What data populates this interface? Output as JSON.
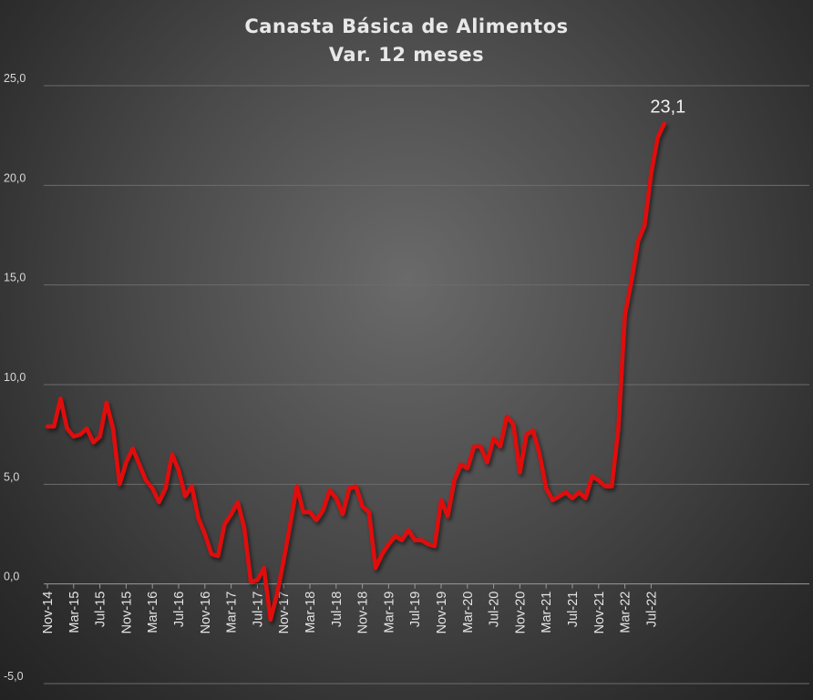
{
  "chart_data": {
    "type": "line",
    "title": "Canasta Básica de Alimentos",
    "subtitle": "Var. 12 meses",
    "xlabel": "",
    "ylabel": "",
    "ylim": [
      -5,
      25
    ],
    "y_ticks": [
      "-5,0",
      "0,0",
      "5,0",
      "10,0",
      "15,0",
      "20,0",
      "25,0"
    ],
    "y_tick_values": [
      -5,
      0,
      5,
      10,
      15,
      20,
      25
    ],
    "x_tick_labels": [
      "Nov-14",
      "Mar-15",
      "Jul-15",
      "Nov-15",
      "Mar-16",
      "Jul-16",
      "Nov-16",
      "Mar-17",
      "Jul-17",
      "Nov-17",
      "Mar-18",
      "Jul-18",
      "Nov-18",
      "Mar-19",
      "Jul-19",
      "Nov-19",
      "Mar-20",
      "Jul-20",
      "Nov-20",
      "Mar-21",
      "Jul-21",
      "Nov-21",
      "Mar-22",
      "Jul-22"
    ],
    "grid": true,
    "line_color": "#e01010",
    "annotation": {
      "text": "23,1",
      "at_month": "Sep-22",
      "value": 23.1
    },
    "series": [
      {
        "name": "",
        "start": "Nov-14",
        "values": [
          7.9,
          7.9,
          9.3,
          7.8,
          7.4,
          7.5,
          7.8,
          7.1,
          7.4,
          9.1,
          7.8,
          5.0,
          6.1,
          6.8,
          6.0,
          5.2,
          4.8,
          4.1,
          4.8,
          6.5,
          5.7,
          4.4,
          4.9,
          3.3,
          2.5,
          1.5,
          1.4,
          3.0,
          3.5,
          4.1,
          2.8,
          0.1,
          0.2,
          0.8,
          -1.8,
          -0.5,
          1.2,
          3.0,
          4.9,
          3.6,
          3.6,
          3.2,
          3.7,
          4.7,
          4.3,
          3.5,
          4.8,
          4.9,
          3.9,
          3.6,
          0.8,
          1.5,
          2.0,
          2.4,
          2.2,
          2.7,
          2.2,
          2.2,
          2.0,
          1.9,
          4.2,
          3.4,
          5.2,
          6.0,
          5.8,
          6.9,
          6.9,
          6.1,
          7.3,
          6.9,
          8.4,
          8.0,
          5.6,
          7.5,
          7.7,
          6.5,
          4.8,
          4.2,
          4.4,
          4.6,
          4.3,
          4.6,
          4.3,
          5.4,
          5.2,
          4.9,
          4.9,
          7.8,
          13.5,
          15.2,
          17.2,
          18.0,
          20.6,
          22.4,
          23.1
        ]
      }
    ]
  }
}
